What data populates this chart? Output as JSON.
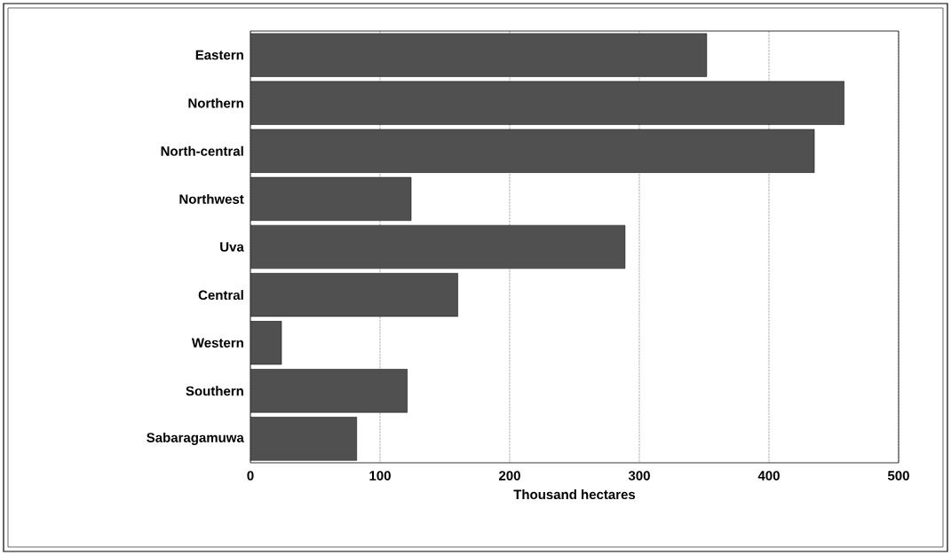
{
  "chart_data": {
    "type": "bar",
    "orientation": "horizontal",
    "xlabel": "Thousand hectares",
    "categories": [
      "Eastern",
      "Northern",
      "North-central",
      "Northwest",
      "Uva",
      "Central",
      "Western",
      "Southern",
      "Sabaragamuwa"
    ],
    "values": [
      352,
      458,
      435,
      124,
      289,
      160,
      24,
      121,
      82
    ],
    "color": "#505050",
    "xlim": [
      0,
      500
    ],
    "xticks": [
      0,
      100,
      200,
      300,
      400,
      500
    ],
    "grid": "x"
  }
}
